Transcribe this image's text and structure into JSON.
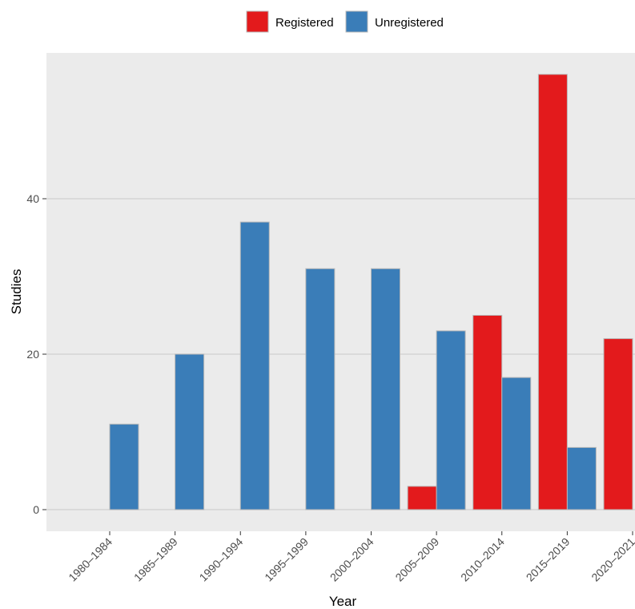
{
  "chart_data": {
    "type": "bar",
    "xlabel": "Year",
    "ylabel": "Studies",
    "categories": [
      "1980–1984",
      "1985–1989",
      "1990–1994",
      "1995–1999",
      "2000–2004",
      "2005–2009",
      "2010–2014",
      "2015–2019",
      "2020–2021"
    ],
    "series": [
      {
        "name": "Registered",
        "color": "#e31a1c",
        "values": [
          0,
          0,
          0,
          0,
          0,
          3,
          25,
          56,
          22
        ]
      },
      {
        "name": "Unregistered",
        "color": "#3a7db8",
        "values": [
          11,
          20,
          37,
          31,
          31,
          23,
          17,
          8,
          null
        ]
      }
    ],
    "yticks": [
      0,
      20,
      40
    ],
    "ylim": [
      -2.8,
      58.8
    ],
    "legend_position": "top",
    "panel_background": "#ebebeb",
    "gridline_color": "#cfcfcf",
    "bar_outline_color": "#b8b8b8",
    "grid": true
  }
}
